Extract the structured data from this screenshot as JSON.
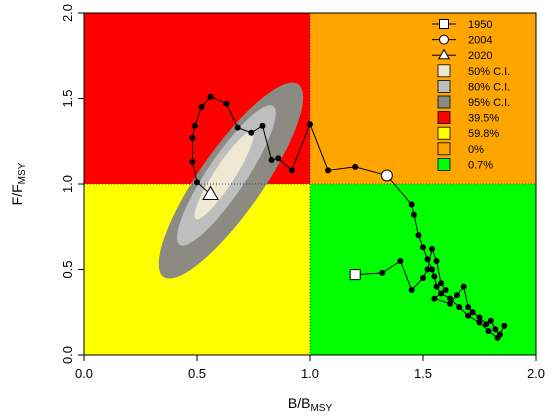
{
  "chart_data": {
    "type": "scatter",
    "xlabel_main": "B/B",
    "xlabel_sub": "MSY",
    "ylabel_main": "F/F",
    "ylabel_sub": "MSY",
    "xlim": [
      0,
      2
    ],
    "ylim": [
      0,
      2
    ],
    "x_ticks": [
      "0.0",
      "0.5",
      "1.0",
      "1.5",
      "2.0"
    ],
    "y_ticks": [
      "0.0",
      "0.5",
      "1.0",
      "1.5",
      "2.0"
    ],
    "reference_lines": {
      "x": 1.0,
      "y": 1.0
    },
    "quadrants": [
      {
        "name": "overfished-overfishing",
        "color": "#ff0000",
        "x": [
          0,
          1
        ],
        "y": [
          1,
          2
        ]
      },
      {
        "name": "overfishing-only",
        "color": "#ffa500",
        "x": [
          1,
          2
        ],
        "y": [
          1,
          2
        ]
      },
      {
        "name": "overfished-only",
        "color": "#ffff00",
        "x": [
          0,
          1
        ],
        "y": [
          0,
          1
        ]
      },
      {
        "name": "sustainable",
        "color": "#00ff00",
        "x": [
          1,
          2
        ],
        "y": [
          0,
          1
        ]
      }
    ],
    "confidence_regions": [
      {
        "level": "95% C.I.",
        "color": "#8b8b83",
        "center": [
          0.65,
          1.02
        ],
        "semi_axes": [
          0.52,
          0.14
        ],
        "angle_deg": 55
      },
      {
        "level": "80% C.I.",
        "color": "#bebebe",
        "center": [
          0.63,
          1.05
        ],
        "semi_axes": [
          0.37,
          0.085
        ],
        "angle_deg": 56
      },
      {
        "level": "50% C.I.",
        "color": "#efe8d2",
        "center": [
          0.62,
          1.05
        ],
        "semi_axes": [
          0.23,
          0.045
        ],
        "angle_deg": 57
      }
    ],
    "trajectory": [
      [
        1.2,
        0.47
      ],
      [
        1.32,
        0.48
      ],
      [
        1.4,
        0.55
      ],
      [
        1.45,
        0.38
      ],
      [
        1.5,
        0.45
      ],
      [
        1.52,
        0.5
      ],
      [
        1.54,
        0.62
      ],
      [
        1.56,
        0.55
      ],
      [
        1.58,
        0.42
      ],
      [
        1.6,
        0.38
      ],
      [
        1.55,
        0.33
      ],
      [
        1.62,
        0.3
      ],
      [
        1.65,
        0.35
      ],
      [
        1.68,
        0.4
      ],
      [
        1.7,
        0.28
      ],
      [
        1.72,
        0.25
      ],
      [
        1.75,
        0.22
      ],
      [
        1.78,
        0.18
      ],
      [
        1.8,
        0.2
      ],
      [
        1.82,
        0.15
      ],
      [
        1.84,
        0.12
      ],
      [
        1.86,
        0.17
      ],
      [
        1.83,
        0.1
      ],
      [
        1.79,
        0.14
      ],
      [
        1.75,
        0.19
      ],
      [
        1.7,
        0.23
      ],
      [
        1.66,
        0.28
      ],
      [
        1.62,
        0.33
      ],
      [
        1.58,
        0.36
      ],
      [
        1.56,
        0.4
      ],
      [
        1.55,
        0.46
      ],
      [
        1.54,
        0.5
      ],
      [
        1.52,
        0.56
      ],
      [
        1.5,
        0.63
      ],
      [
        1.48,
        0.7
      ],
      [
        1.46,
        0.82
      ],
      [
        1.45,
        0.88
      ],
      [
        1.34,
        1.05
      ],
      [
        1.2,
        1.1
      ],
      [
        1.08,
        1.08
      ],
      [
        1.0,
        1.35
      ],
      [
        0.92,
        1.08
      ],
      [
        0.86,
        1.15
      ],
      [
        0.83,
        1.14
      ],
      [
        0.79,
        1.34
      ],
      [
        0.74,
        1.3
      ],
      [
        0.68,
        1.33
      ],
      [
        0.63,
        1.47
      ],
      [
        0.56,
        1.51
      ],
      [
        0.52,
        1.45
      ],
      [
        0.49,
        1.34
      ],
      [
        0.48,
        1.27
      ],
      [
        0.48,
        1.13
      ],
      [
        0.5,
        1.01
      ],
      [
        0.56,
        0.94
      ]
    ],
    "markers": {
      "start": {
        "year": "1950",
        "x": 1.2,
        "y": 0.47,
        "shape": "square"
      },
      "mid": {
        "year": "2004",
        "x": 1.34,
        "y": 1.05,
        "shape": "circle"
      },
      "end": {
        "year": "2020",
        "x": 0.56,
        "y": 0.94,
        "shape": "triangle"
      }
    },
    "legend": {
      "placement": "top-right",
      "items": [
        {
          "label": "1950",
          "kind": "line-square"
        },
        {
          "label": "2004",
          "kind": "line-circle"
        },
        {
          "label": "2020",
          "kind": "line-triangle"
        },
        {
          "label": "50% C.I.",
          "kind": "fill",
          "color": "#efe8d2"
        },
        {
          "label": "80% C.I.",
          "kind": "fill",
          "color": "#bebebe"
        },
        {
          "label": "95% C.I.",
          "kind": "fill",
          "color": "#8b8b83"
        },
        {
          "label": "39.5%",
          "kind": "fill",
          "color": "#ff0000"
        },
        {
          "label": "59.8%",
          "kind": "fill",
          "color": "#ffff00"
        },
        {
          "label": "0%",
          "kind": "fill",
          "color": "#ffa500"
        },
        {
          "label": "0.7%",
          "kind": "fill",
          "color": "#00ff00"
        }
      ]
    }
  }
}
